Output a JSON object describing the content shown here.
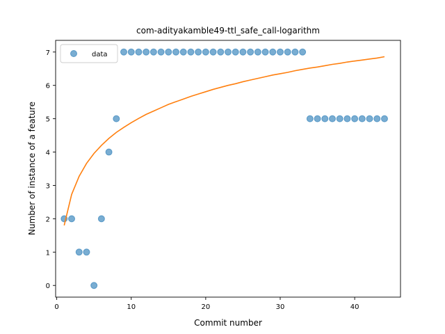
{
  "chart_data": {
    "type": "scatter",
    "title": "com-adityakamble49-ttl_safe_call-logarithm",
    "xlabel": "Commit number",
    "ylabel": "Number of instance of a feature",
    "xlim": [
      -0.15,
      46.15
    ],
    "ylim": [
      -0.35,
      7.35
    ],
    "xticks": [
      0,
      10,
      20,
      30,
      40
    ],
    "yticks": [
      0,
      1,
      2,
      3,
      4,
      5,
      6,
      7
    ],
    "grid": false,
    "legend_position": "top-left",
    "series": [
      {
        "name": "data",
        "kind": "scatter",
        "color": "#1f77b4",
        "x": [
          1,
          2,
          3,
          4,
          5,
          6,
          7,
          8,
          9,
          10,
          11,
          12,
          13,
          14,
          15,
          16,
          17,
          18,
          19,
          20,
          21,
          22,
          23,
          24,
          25,
          26,
          27,
          28,
          29,
          30,
          31,
          32,
          33,
          34,
          35,
          36,
          37,
          38,
          39,
          40,
          41,
          42,
          43,
          44
        ],
        "y": [
          2,
          2,
          1,
          1,
          0,
          2,
          4,
          5,
          7,
          7,
          7,
          7,
          7,
          7,
          7,
          7,
          7,
          7,
          7,
          7,
          7,
          7,
          7,
          7,
          7,
          7,
          7,
          7,
          7,
          7,
          7,
          7,
          7,
          5,
          5,
          5,
          5,
          5,
          5,
          5,
          5,
          5,
          5,
          5
        ]
      },
      {
        "kind": "line",
        "color": "#ff7f0e",
        "x": [
          1,
          2,
          3,
          4,
          5,
          6,
          7,
          8,
          9,
          10,
          11,
          12,
          13,
          14,
          15,
          16,
          17,
          18,
          19,
          20,
          21,
          22,
          23,
          24,
          25,
          26,
          27,
          28,
          29,
          30,
          31,
          32,
          33,
          34,
          35,
          36,
          37,
          38,
          39,
          40,
          41,
          42,
          43,
          44
        ],
        "y": [
          1.8,
          2.73,
          3.27,
          3.66,
          3.96,
          4.2,
          4.41,
          4.59,
          4.74,
          4.88,
          5.01,
          5.13,
          5.23,
          5.33,
          5.43,
          5.51,
          5.59,
          5.67,
          5.74,
          5.81,
          5.88,
          5.94,
          6.0,
          6.05,
          6.11,
          6.16,
          6.21,
          6.26,
          6.31,
          6.35,
          6.39,
          6.44,
          6.48,
          6.52,
          6.55,
          6.59,
          6.63,
          6.66,
          6.7,
          6.73,
          6.76,
          6.79,
          6.82,
          6.86
        ]
      }
    ]
  }
}
